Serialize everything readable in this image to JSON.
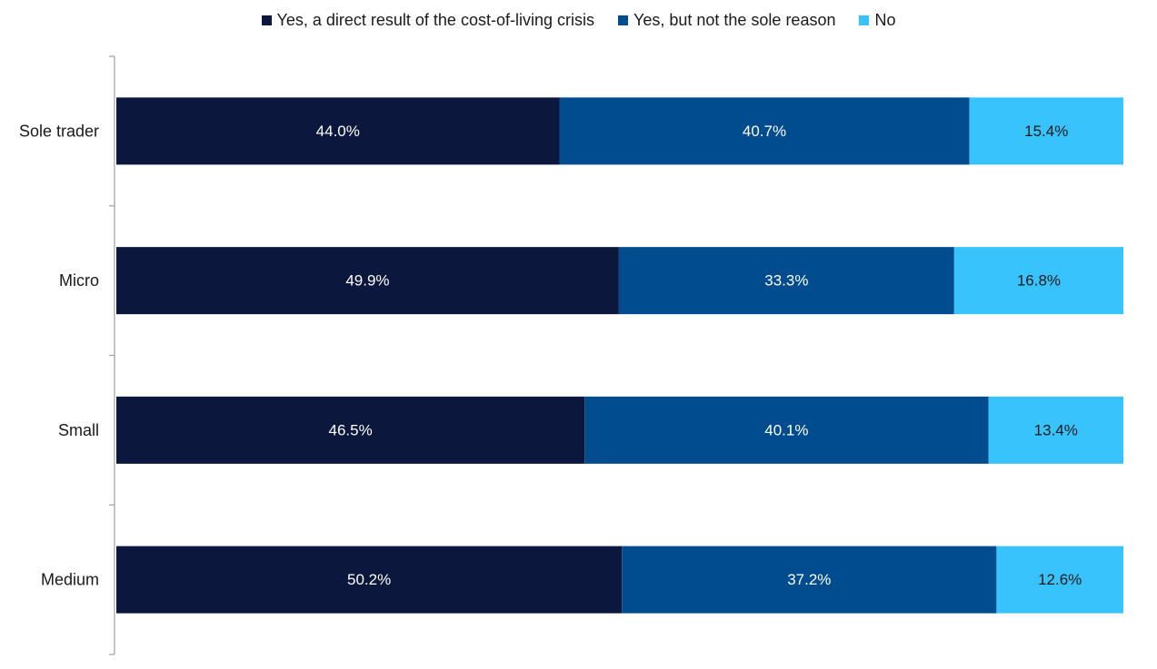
{
  "chart_data": {
    "type": "bar",
    "orientation": "horizontal",
    "stacked": true,
    "categories": [
      "Sole trader",
      "Micro",
      "Small",
      "Medium"
    ],
    "series": [
      {
        "name": "Yes, a direct result of the cost-of-living crisis",
        "color": "#0c173d",
        "values": [
          44.0,
          49.9,
          46.5,
          50.2
        ],
        "labels": [
          "44.0%",
          "49.9%",
          "46.5%",
          "50.2%"
        ]
      },
      {
        "name": "Yes, but not the sole reason",
        "color": "#004c8f",
        "values": [
          40.7,
          33.3,
          40.1,
          37.2
        ],
        "labels": [
          "40.7%",
          "33.3%",
          "40.1%",
          "37.2%"
        ]
      },
      {
        "name": "No",
        "color": "#38c3fc",
        "values": [
          15.4,
          16.8,
          13.4,
          12.6
        ],
        "labels": [
          "15.4%",
          "16.8%",
          "13.4%",
          "12.6%"
        ]
      }
    ],
    "xlim": [
      0,
      100
    ],
    "legend_position": "top-center",
    "label_color": "#ffffff",
    "category_label_color": "#1a1a1a",
    "grid": false
  }
}
